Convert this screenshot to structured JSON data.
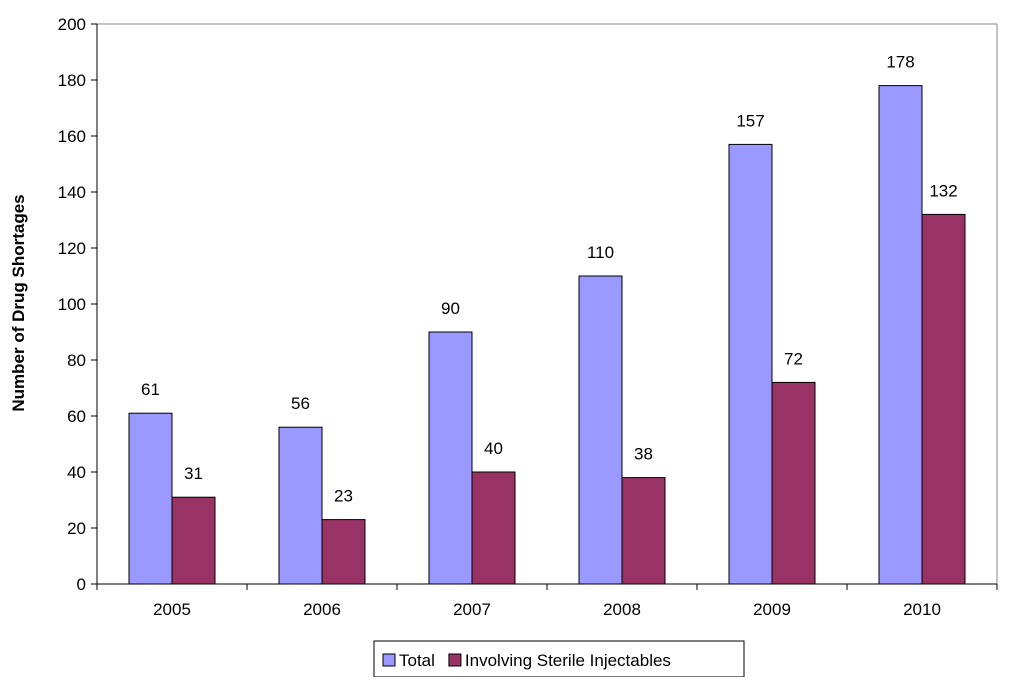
{
  "chart_data": {
    "type": "bar",
    "title": "",
    "xlabel": "",
    "ylabel": "Number of Drug Shortages",
    "ylim": [
      0,
      200
    ],
    "yticks": [
      0,
      20,
      40,
      60,
      80,
      100,
      120,
      140,
      160,
      180,
      200
    ],
    "categories": [
      "2005",
      "2006",
      "2007",
      "2008",
      "2009",
      "2010"
    ],
    "series": [
      {
        "name": "Total",
        "values": [
          61,
          56,
          90,
          110,
          157,
          178
        ],
        "color": "#9999ff"
      },
      {
        "name": "Involving Sterile Injectables",
        "values": [
          31,
          23,
          40,
          38,
          72,
          132
        ],
        "color": "#993366"
      }
    ],
    "grid": false,
    "legend": "bottom-center",
    "data_labels": true
  }
}
